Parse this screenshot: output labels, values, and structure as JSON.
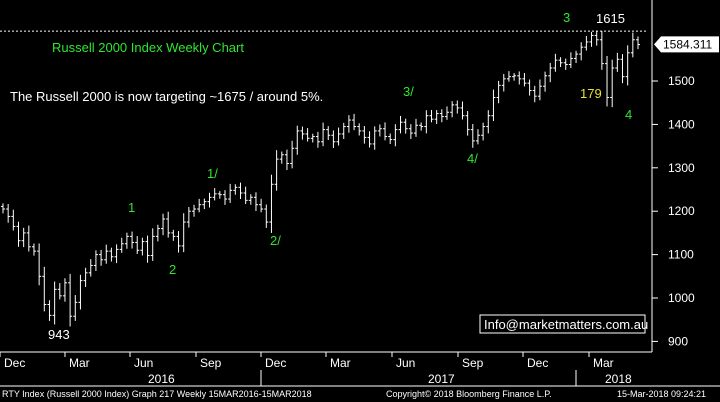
{
  "chart_data": {
    "type": "ohlc",
    "title": "Russell 2000 Index Weekly Chart",
    "subtitle": "The Russell 2000 is now targeting ~1675 / around 5%.",
    "ylim": [
      880,
      1650
    ],
    "y_ticks": [
      900,
      1000,
      1100,
      1200,
      1300,
      1400,
      1500
    ],
    "last_price_label": "1584.311",
    "x_month_labels": [
      "Dec",
      "Mar",
      "Jun",
      "Sep",
      "Dec",
      "Mar",
      "Jun",
      "Sep",
      "Dec",
      "Mar"
    ],
    "x_year_labels": [
      "2016",
      "2017",
      "2018"
    ],
    "annotations": [
      {
        "text": "943",
        "color": "white"
      },
      {
        "text": "1",
        "color": "green"
      },
      {
        "text": "2",
        "color": "green"
      },
      {
        "text": "1/",
        "color": "green"
      },
      {
        "text": "2/",
        "color": "green"
      },
      {
        "text": "3/",
        "color": "green"
      },
      {
        "text": "4/",
        "color": "green"
      },
      {
        "text": "3",
        "color": "green"
      },
      {
        "text": "1615",
        "color": "white"
      },
      {
        "text": "179",
        "color": "yellow"
      },
      {
        "text": "4",
        "color": "green"
      }
    ],
    "reference_line": 1615,
    "watermark": "Info@marketmatters.com.au",
    "closes": [
      1205,
      1188,
      1165,
      1132,
      1150,
      1118,
      1108,
      1050,
      985,
      960,
      1020,
      1005,
      1035,
      958,
      990,
      1040,
      1058,
      1075,
      1100,
      1088,
      1108,
      1095,
      1112,
      1125,
      1142,
      1128,
      1110,
      1130,
      1098,
      1142,
      1160,
      1182,
      1150,
      1142,
      1120,
      1175,
      1200,
      1205,
      1215,
      1222,
      1232,
      1240,
      1238,
      1228,
      1248,
      1255,
      1242,
      1225,
      1232,
      1215,
      1205,
      1175,
      1262,
      1320,
      1330,
      1310,
      1345,
      1385,
      1378,
      1368,
      1372,
      1360,
      1388,
      1375,
      1360,
      1378,
      1395,
      1410,
      1395,
      1385,
      1370,
      1355,
      1385,
      1390,
      1372,
      1365,
      1388,
      1405,
      1390,
      1380,
      1398,
      1395,
      1420,
      1412,
      1425,
      1418,
      1428,
      1445,
      1438,
      1420,
      1388,
      1362,
      1375,
      1395,
      1420,
      1462,
      1490,
      1505,
      1510,
      1512,
      1505,
      1495,
      1478,
      1465,
      1488,
      1512,
      1530,
      1548,
      1542,
      1538,
      1552,
      1562,
      1578,
      1590,
      1605,
      1595,
      1540,
      1462,
      1530,
      1550,
      1510,
      1565,
      1595,
      1584
    ]
  },
  "footer": {
    "left": "RTY Index (Russell 2000 Index) Graph 217  Weekly 15MAR2016-15MAR2018",
    "center": "Copyright© 2018 Bloomberg Finance L.P.",
    "right": "15-Mar-2018 09:24:21"
  },
  "colors": {
    "background": "#000000",
    "bars": "#ffffff",
    "label_green": "#2ee62e",
    "label_yellow": "#e8e22a",
    "price_tag": "#ffffff"
  }
}
